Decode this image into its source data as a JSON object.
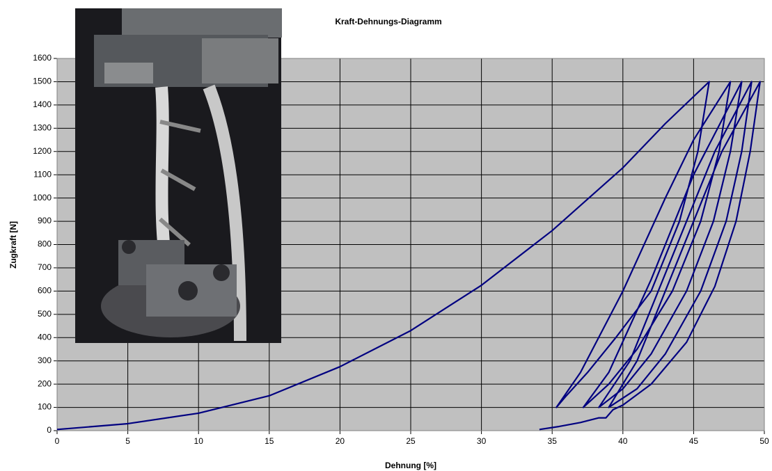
{
  "chart_data": {
    "type": "line",
    "title": "Kraft-Dehnungs-Diagramm",
    "x_label": "Dehnung [%]",
    "y_label": "Zugkraft [N]",
    "color": "#000080",
    "grid": true,
    "xlim": [
      0,
      50
    ],
    "xticks": [
      0,
      5,
      10,
      15,
      20,
      25,
      30,
      35,
      40,
      45,
      50
    ],
    "ylim": [
      0,
      1600
    ],
    "yticks": [
      0,
      100,
      200,
      300,
      400,
      500,
      600,
      700,
      800,
      900,
      1000,
      1100,
      1200,
      1300,
      1400,
      1500,
      1600
    ],
    "x": [
      0,
      5,
      10,
      15,
      20,
      25,
      30,
      35,
      40,
      43,
      46.1,
      45.3,
      44,
      42,
      39.5,
      37.5,
      36,
      35.3,
      37,
      40,
      43,
      45,
      47.6,
      46.8,
      45.5,
      43.5,
      41,
      39,
      37.2,
      39,
      42,
      45,
      48.4,
      47.6,
      46.4,
      44.5,
      42,
      40,
      38.3,
      40.5,
      43.5,
      46.5,
      49.1,
      48.4,
      47.3,
      45.5,
      43,
      41,
      39,
      41,
      44,
      47,
      49.7,
      49,
      48,
      46.5,
      44.5,
      42,
      40,
      39.3,
      38.8,
      38.3,
      37,
      35.5,
      34.1
    ],
    "values": [
      5,
      30,
      75,
      150,
      275,
      430,
      625,
      860,
      1130,
      1320,
      1500,
      1200,
      900,
      600,
      400,
      250,
      150,
      100,
      250,
      600,
      1000,
      1250,
      1500,
      1200,
      900,
      600,
      350,
      200,
      100,
      250,
      650,
      1100,
      1500,
      1200,
      900,
      600,
      330,
      180,
      100,
      300,
      750,
      1200,
      1500,
      1200,
      900,
      600,
      330,
      180,
      100,
      300,
      750,
      1200,
      1500,
      1200,
      900,
      620,
      380,
      200,
      110,
      90,
      55,
      55,
      35,
      18,
      5
    ]
  }
}
